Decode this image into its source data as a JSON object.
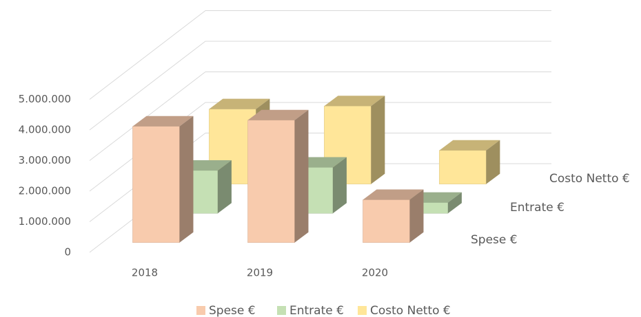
{
  "chart_data": {
    "type": "bar3d",
    "categories": [
      "2018",
      "2019",
      "2020"
    ],
    "series": [
      {
        "name": "Spese €",
        "color": "#f8cbad",
        "values": [
          3800000,
          4000000,
          1400000
        ]
      },
      {
        "name": "Entrate €",
        "color": "#c5e0b4",
        "values": [
          1400000,
          1500000,
          350000
        ]
      },
      {
        "name": "Costo Netto €",
        "color": "#ffe699",
        "values": [
          2450000,
          2550000,
          1100000
        ]
      }
    ],
    "ylim": [
      0,
      5000000
    ],
    "yticks": [
      0,
      {
        "value": 1000000,
        "label": "1.000.000"
      },
      {
        "value": 2000000,
        "label": "2.000.000"
      },
      {
        "value": 3000000,
        "label": "3.000.000"
      },
      {
        "value": 4000000,
        "label": "4.000.000"
      },
      {
        "value": 5000000,
        "label": "5.000.000"
      }
    ],
    "grid": true,
    "legend": "bottom"
  }
}
